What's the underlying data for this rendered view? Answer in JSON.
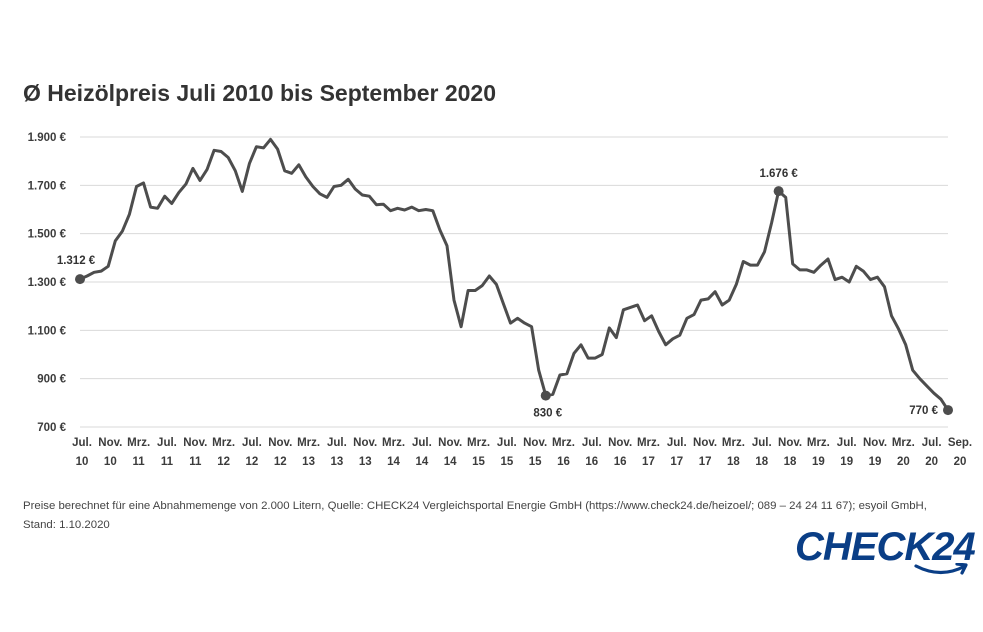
{
  "title": "Ø Heizölpreis Juli 2010 bis September 2020",
  "source_text": "Preise berechnet für eine Abnahmemenge von 2.000 Litern, Quelle: CHECK24 Vergleichsportal Energie GmbH (https://www.check24.de/heizoel/; 089 – 24 24 11 67); esyoil GmbH, Stand: 1.10.2020",
  "logo": {
    "text": "CHECK24",
    "color": "#0a3e86"
  },
  "colors": {
    "line": "#4d4d4d",
    "grid": "#d9d9d9",
    "text": "#3c3c3c"
  },
  "chart_data": {
    "type": "line",
    "title": "Ø Heizölpreis Juli 2010 bis September 2020",
    "ylim": [
      700,
      1900
    ],
    "yticks": [
      700,
      900,
      1100,
      1300,
      1500,
      1700,
      1900
    ],
    "ytick_labels": [
      "700 €",
      "900 €",
      "1.100 €",
      "1.300 €",
      "1.500 €",
      "1.700 €",
      "1.900 €"
    ],
    "xtick_labels": [
      [
        "Jul.",
        "10"
      ],
      [
        "Nov.",
        "10"
      ],
      [
        "Mrz.",
        "11"
      ],
      [
        "Jul.",
        "11"
      ],
      [
        "Nov.",
        "11"
      ],
      [
        "Mrz.",
        "12"
      ],
      [
        "Jul.",
        "12"
      ],
      [
        "Nov.",
        "12"
      ],
      [
        "Mrz.",
        "13"
      ],
      [
        "Jul.",
        "13"
      ],
      [
        "Nov.",
        "13"
      ],
      [
        "Mrz.",
        "14"
      ],
      [
        "Jul.",
        "14"
      ],
      [
        "Nov.",
        "14"
      ],
      [
        "Mrz.",
        "15"
      ],
      [
        "Jul.",
        "15"
      ],
      [
        "Nov.",
        "15"
      ],
      [
        "Mrz.",
        "16"
      ],
      [
        "Jul.",
        "16"
      ],
      [
        "Nov.",
        "16"
      ],
      [
        "Mrz.",
        "17"
      ],
      [
        "Jul.",
        "17"
      ],
      [
        "Nov.",
        "17"
      ],
      [
        "Mrz.",
        "18"
      ],
      [
        "Jul.",
        "18"
      ],
      [
        "Nov.",
        "18"
      ],
      [
        "Mrz.",
        "19"
      ],
      [
        "Jul.",
        "19"
      ],
      [
        "Nov.",
        "19"
      ],
      [
        "Mrz.",
        "20"
      ],
      [
        "Jul.",
        "20"
      ],
      [
        "Sep.",
        "20"
      ]
    ],
    "grid": true,
    "series": [
      {
        "values": [
          1312,
          1325,
          1340,
          1345,
          1365,
          1470,
          1510,
          1580,
          1695,
          1710,
          1610,
          1605,
          1655,
          1625,
          1670,
          1705,
          1770,
          1720,
          1765,
          1845,
          1840,
          1815,
          1760,
          1675,
          1790,
          1860,
          1855,
          1890,
          1850,
          1760,
          1750,
          1785,
          1735,
          1695,
          1665,
          1650,
          1695,
          1700,
          1725,
          1685,
          1660,
          1655,
          1620,
          1622,
          1595,
          1605,
          1598,
          1610,
          1595,
          1600,
          1595,
          1515,
          1450,
          1225,
          1115,
          1265,
          1265,
          1285,
          1325,
          1290,
          1210,
          1130,
          1150,
          1130,
          1115,
          935,
          830,
          835,
          915,
          920,
          1005,
          1040,
          985,
          985,
          1000,
          1110,
          1070,
          1185,
          1195,
          1205,
          1140,
          1160,
          1095,
          1040,
          1065,
          1080,
          1150,
          1165,
          1225,
          1230,
          1260,
          1205,
          1225,
          1290,
          1385,
          1370,
          1370,
          1425,
          1545,
          1676,
          1650,
          1375,
          1350,
          1350,
          1340,
          1370,
          1395,
          1310,
          1320,
          1300,
          1365,
          1345,
          1310,
          1320,
          1280,
          1160,
          1105,
          1040,
          935,
          900,
          870,
          840,
          815,
          770
        ]
      }
    ],
    "highlighted_points": [
      {
        "index": 0,
        "value": 1312,
        "label": "1.312 €"
      },
      {
        "index": 66,
        "value": 830,
        "label": "830 €"
      },
      {
        "index": 99,
        "value": 1676,
        "label": "1.676 €"
      },
      {
        "index": 123,
        "value": 770,
        "label": "770 €"
      }
    ]
  }
}
